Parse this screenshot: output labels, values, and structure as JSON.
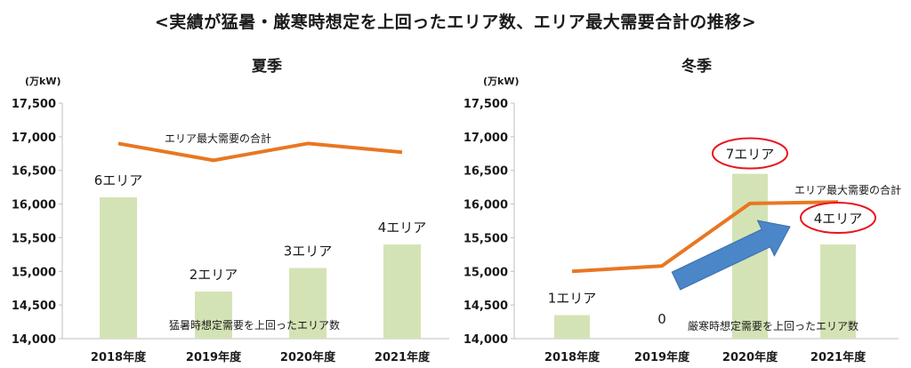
{
  "title": "<実績が猛暑・厳寒時想定を上回ったエリア数、エリア最大需要合計の推移>",
  "colors": {
    "bar": "#d4e3b5",
    "line": "#e87722",
    "arrow": "#4a86c8",
    "highlight": "#e8141e"
  },
  "chart_data": [
    {
      "type": "bar",
      "title": "夏季",
      "ylabel": "(万kW)",
      "ylim": [
        14000,
        17500
      ],
      "yticks": [
        "14,000",
        "14,500",
        "15,000",
        "15,500",
        "16,000",
        "16,500",
        "17,000",
        "17,500"
      ],
      "ytick_values": [
        14000,
        14500,
        15000,
        15500,
        16000,
        16500,
        17000,
        17500
      ],
      "categories": [
        "2018年度",
        "2019年度",
        "2020年度",
        "2021年度"
      ],
      "bar_series": {
        "name": "猛暑時想定需要を上回ったエリア数",
        "values": [
          16100,
          14700,
          15050,
          15400
        ],
        "labels": [
          "6エリア",
          "2エリア",
          "3エリア",
          "4エリア"
        ]
      },
      "line_series": {
        "name": "エリア最大需要の合計",
        "values": [
          16900,
          16650,
          16900,
          16770
        ]
      }
    },
    {
      "type": "bar",
      "title": "冬季",
      "ylabel": "(万kW)",
      "ylim": [
        14000,
        17500
      ],
      "yticks": [
        "14,000",
        "14,500",
        "15,000",
        "15,500",
        "16,000",
        "16,500",
        "17,000",
        "17,500"
      ],
      "ytick_values": [
        14000,
        14500,
        15000,
        15500,
        16000,
        16500,
        17000,
        17500
      ],
      "categories": [
        "2018年度",
        "2019年度",
        "2020年度",
        "2021年度"
      ],
      "bar_series": {
        "name": "厳寒時想定需要を上回ったエリア数",
        "values": [
          14350,
          14000,
          16450,
          15400
        ],
        "labels": [
          "1エリア",
          "0",
          "7エリア",
          "4エリア"
        ],
        "highlighted": [
          false,
          false,
          true,
          true
        ]
      },
      "line_series": {
        "name": "エリア最大需要の合計",
        "values": [
          15000,
          15080,
          16010,
          16030
        ]
      }
    }
  ]
}
